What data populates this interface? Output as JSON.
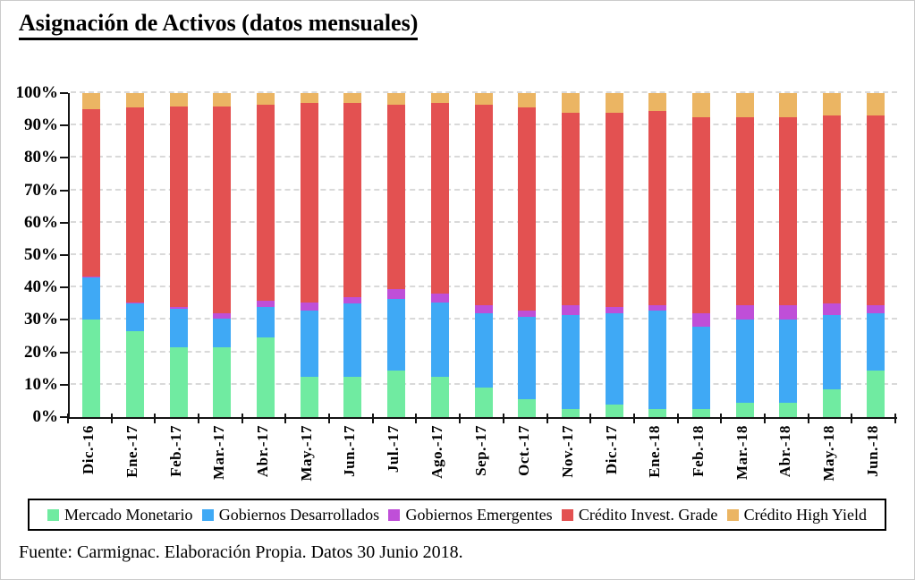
{
  "title": "Asignación de Activos (datos mensuales)",
  "footer": "Fuente: Carmignac. Elaboración Propia. Datos 30 Junio 2018.",
  "chart_data": {
    "type": "bar",
    "stacked": true,
    "unit": "percent",
    "title": "Asignación de Activos (datos mensuales)",
    "categories": [
      "Dic.-16",
      "Ene.-17",
      "Feb.-17",
      "Mar.-17",
      "Abr.-17",
      "May.-17",
      "Jun.-17",
      "Jul.-17",
      "Ago.-17",
      "Sep.-17",
      "Oct.-17",
      "Nov.-17",
      "Dic.-17",
      "Ene.-18",
      "Feb.-18",
      "Mar.-18",
      "Abr.-18",
      "May.-18",
      "Jun.-18"
    ],
    "series": [
      {
        "name": "Mercado Monetario",
        "color": "#70EBA1",
        "values": [
          30,
          26.5,
          21.5,
          21.5,
          24.5,
          12.5,
          12.5,
          14.5,
          12.5,
          9,
          5.5,
          2.5,
          4,
          2.5,
          2.5,
          4.5,
          4.5,
          8.5,
          14.5
        ]
      },
      {
        "name": "Gobiernos Desarrollados",
        "color": "#3FA9F5",
        "values": [
          13,
          8.5,
          12,
          9,
          9.5,
          20.5,
          22.5,
          22,
          23,
          23,
          25.5,
          29,
          28,
          30.5,
          25.5,
          25.5,
          25.5,
          23,
          17.5
        ]
      },
      {
        "name": "Gobiernos Emergentes",
        "color": "#BF4FD8",
        "values": [
          0.5,
          0.5,
          0.5,
          1.5,
          2,
          2.5,
          2,
          3,
          2.5,
          2.5,
          2,
          3,
          2,
          1.5,
          4,
          4.5,
          4.5,
          3.5,
          2.5
        ]
      },
      {
        "name": "Crédito Invest. Grade",
        "color": "#E35151",
        "values": [
          51.5,
          60,
          62,
          64,
          60.5,
          61.5,
          60,
          57,
          59,
          62,
          62.5,
          59.5,
          60,
          60,
          60.5,
          58,
          58,
          58,
          58.5
        ]
      },
      {
        "name": "Crédito High Yield",
        "color": "#EBB563",
        "values": [
          5,
          4.5,
          4,
          4,
          3.5,
          3,
          3,
          3.5,
          3,
          3.5,
          4.5,
          6,
          6,
          5.5,
          7.5,
          7.5,
          7.5,
          7,
          7
        ]
      }
    ],
    "y_axis": {
      "min": 0,
      "max": 100,
      "tick_step": 10,
      "tick_labels": [
        "0%",
        "10%",
        "20%",
        "30%",
        "40%",
        "50%",
        "60%",
        "70%",
        "80%",
        "90%",
        "100%"
      ],
      "grid": true
    },
    "legend_position": "bottom"
  }
}
